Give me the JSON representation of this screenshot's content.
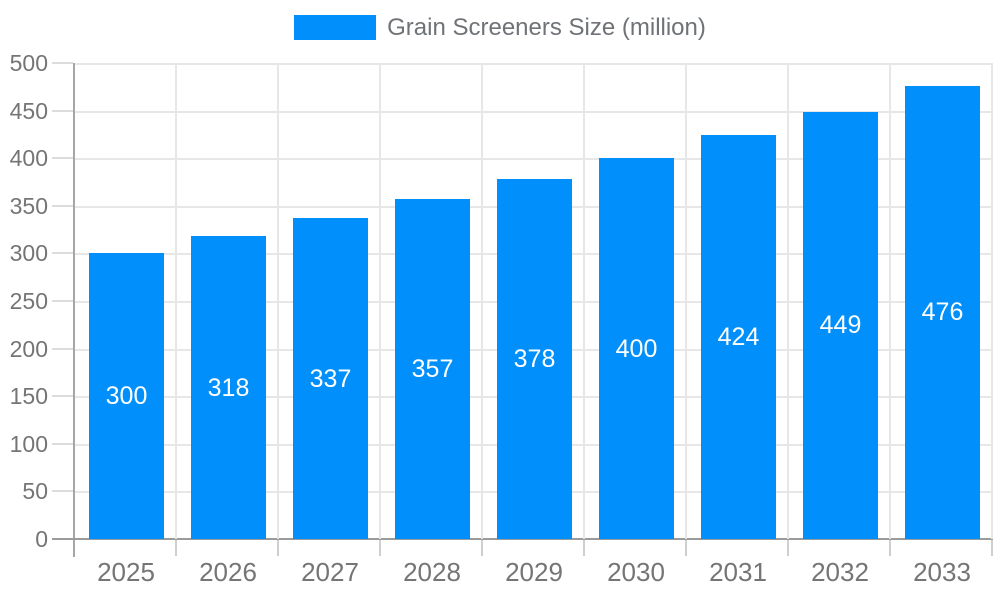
{
  "legend": {
    "label": "Grain Screeners Size (million)"
  },
  "chart_data": {
    "type": "bar",
    "title": "Grain Screeners Size (million)",
    "categories": [
      "2025",
      "2026",
      "2027",
      "2028",
      "2029",
      "2030",
      "2031",
      "2032",
      "2033"
    ],
    "series": [
      {
        "name": "Grain Screeners Size (million)",
        "values": [
          300,
          318,
          337,
          357,
          378,
          400,
          424,
          449,
          476
        ]
      }
    ],
    "values": [
      300,
      318,
      337,
      357,
      378,
      400,
      424,
      449,
      476
    ],
    "data_labels": [
      "300",
      "318",
      "337",
      "357",
      "378",
      "400",
      "424",
      "449",
      "476"
    ],
    "xlabel": "",
    "ylabel": "",
    "ylim": [
      0,
      500
    ],
    "ytick_step": 50,
    "ytick_labels": [
      "0",
      "50",
      "100",
      "150",
      "200",
      "250",
      "300",
      "350",
      "400",
      "450",
      "500"
    ],
    "grid": true,
    "legend_position": "top",
    "colors": {
      "bar": "#008FFB",
      "data_label_text": "#ffffff",
      "axis_text": "#757575",
      "legend_text": "#6f7377",
      "gridline": "#e7e7e7",
      "axis_line": "#9b9b9b"
    }
  }
}
